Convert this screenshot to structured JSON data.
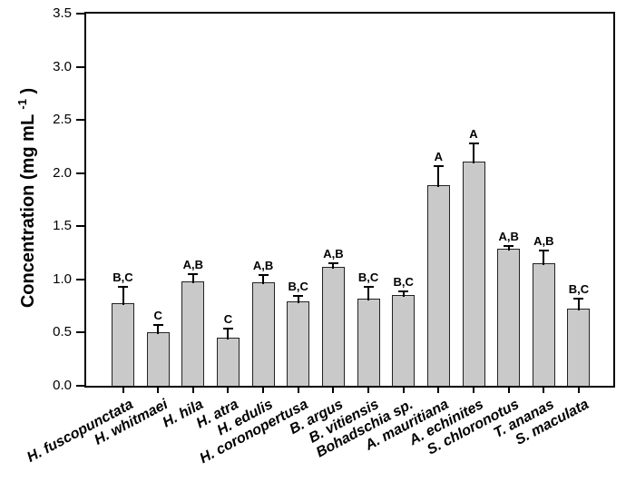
{
  "figure": {
    "background": "#ffffff",
    "bar_fill": "#c9c9c9",
    "bar_border": "#222222",
    "axis_color": "#000000",
    "text_color": "#000000"
  },
  "chart_data": {
    "type": "bar",
    "title": "",
    "xlabel": "",
    "ylabel": "Concentration (mg mL -1)",
    "ylabel_parts": {
      "main": "Concentration (mg mL ",
      "sup": "-1",
      "close": " )"
    },
    "ylim": [
      0,
      3.5
    ],
    "ytick_step": 0.5,
    "yticks": [
      "0.0",
      "0.5",
      "1.0",
      "1.5",
      "2.0",
      "2.5",
      "3.0",
      "3.5"
    ],
    "grid": false,
    "legend": null,
    "categories": [
      "H. fuscopunctata",
      "H. whitmaei",
      "H. hila",
      "H. atra",
      "H. edulis",
      "H. coronopertusa",
      "B. argus",
      "B. vitiensis",
      "Bohadschia sp.",
      "A. mauritiana",
      "A. echinites",
      "S. chloronotus",
      "T. ananas",
      "S. maculata"
    ],
    "values": [
      0.78,
      0.5,
      0.98,
      0.45,
      0.97,
      0.79,
      1.12,
      0.82,
      0.85,
      1.89,
      2.11,
      1.29,
      1.15,
      0.73
    ],
    "errors": [
      0.14,
      0.06,
      0.06,
      0.08,
      0.06,
      0.05,
      0.02,
      0.1,
      0.03,
      0.17,
      0.16,
      0.02,
      0.11,
      0.08
    ],
    "sig_labels": [
      "B,C",
      "C",
      "A,B",
      "C",
      "A,B",
      "B,C",
      "A,B",
      "B,C",
      "B,C",
      "A",
      "A",
      "A,B",
      "A,B",
      "B,C"
    ]
  }
}
